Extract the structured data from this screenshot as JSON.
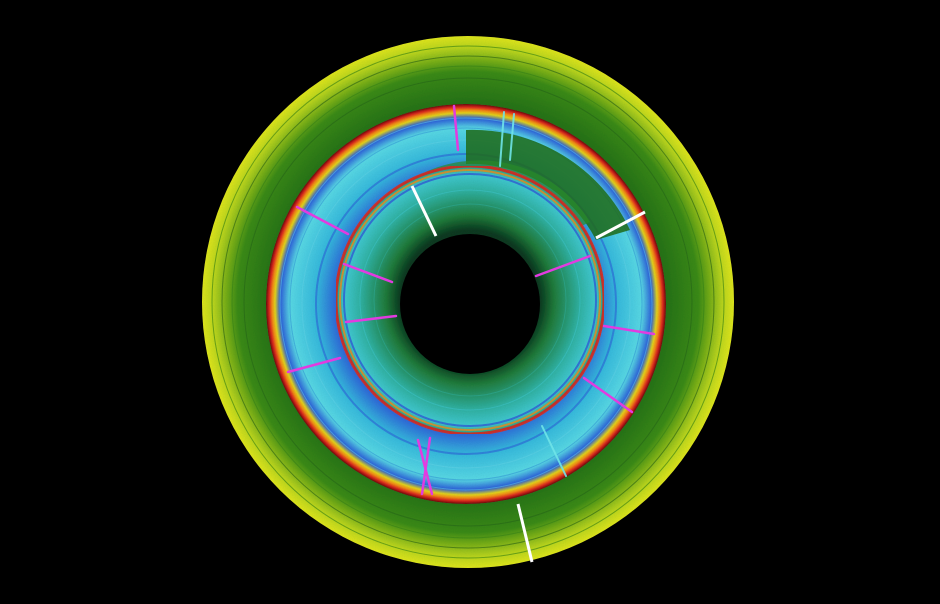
{
  "image": {
    "subject": "concentric-spiral-spectrogram",
    "background_color": "#000000",
    "palette": {
      "outer_yellow": "#d8e21a",
      "outer_green": "#2f7d12",
      "inner_green": "#1f6a18",
      "cyan": "#34c6d6",
      "light_cyan": "#6fe4e8",
      "blue": "#2c4fd6",
      "violet": "#4a1ea8",
      "red": "#d8261c",
      "orange": "#f08a18",
      "magenta": "#e23be0",
      "white": "#ffffff",
      "hole": "#000000"
    },
    "turns": 3
  }
}
